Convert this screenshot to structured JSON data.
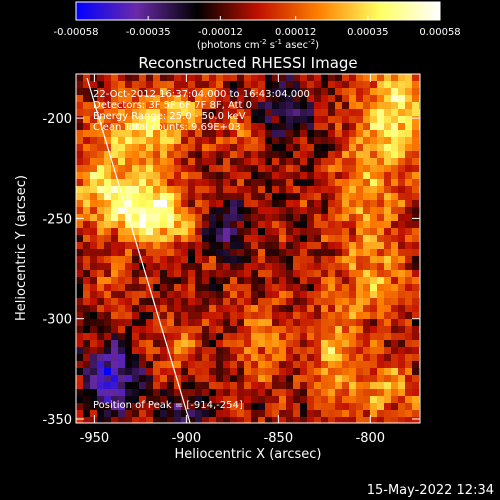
{
  "chart_data": {
    "type": "heatmap",
    "title": "Reconstructed RHESSI Image",
    "colorbar": {
      "ticks": [
        "-0.00058",
        "-0.00035",
        "-0.00012",
        "0.00012",
        "0.00035",
        "0.00058"
      ],
      "range": [
        -0.00058,
        0.00058
      ],
      "label_pre": "(photons cm",
      "label_exp1": "-2",
      "label_mid1": " s",
      "label_exp2": "-1",
      "label_mid2": " asec",
      "label_exp3": "-2",
      "label_post": ")",
      "colormap": [
        "#0000ff",
        "#6a2aa8",
        "#000000",
        "#c01000",
        "#ff8000",
        "#ffff60",
        "#ffffff"
      ]
    },
    "annotations": {
      "time": "22-Oct-2012 16:37:04.000 to 16:43:04.000",
      "detectors": "Detectors: 3F 5F 6F 7F 8F, Att 0",
      "energy": "Energy Range: 25.0 - 50.0 keV",
      "clean": "Clean     Total counts: 9.69E+03",
      "peak": "Position of Peak = [-914,-254]"
    },
    "x_axis": {
      "label": "Heliocentric X (arcsec)",
      "ticks": [
        -950,
        -900,
        -850,
        -800
      ],
      "tick_labels": [
        "-950",
        "-900",
        "-850",
        "-800"
      ],
      "range": [
        -960,
        -773
      ]
    },
    "y_axis": {
      "label": "Heliocentric Y (arcsec)",
      "ticks": [
        -350,
        -300,
        -250,
        -200
      ],
      "tick_labels": [
        "-350",
        "-300",
        "-250",
        "-200"
      ],
      "range": [
        -352,
        -178
      ]
    },
    "peak_position": [
      -914,
      -254
    ],
    "limb_line": [
      [
        -954,
        -180
      ],
      [
        -898,
        -352
      ]
    ],
    "grid": false,
    "features": [
      {
        "x": -918,
        "y": -250,
        "sx": 14,
        "sy": 10,
        "amp": 1.0
      },
      {
        "x": -940,
        "y": -236,
        "sx": 18,
        "sy": 12,
        "amp": 0.8
      },
      {
        "x": -925,
        "y": -205,
        "sx": 18,
        "sy": 12,
        "amp": 0.7
      },
      {
        "x": -903,
        "y": -195,
        "sx": 10,
        "sy": 8,
        "amp": 0.35
      },
      {
        "x": -940,
        "y": -285,
        "sx": 6,
        "sy": 10,
        "amp": 0.3
      },
      {
        "x": -905,
        "y": -315,
        "sx": 8,
        "sy": 8,
        "amp": 0.4
      },
      {
        "x": -860,
        "y": -310,
        "sx": 10,
        "sy": 14,
        "amp": 0.45
      },
      {
        "x": -820,
        "y": -320,
        "sx": 9,
        "sy": 22,
        "amp": 0.6
      },
      {
        "x": -800,
        "y": -240,
        "sx": 14,
        "sy": 30,
        "amp": 0.5
      },
      {
        "x": -785,
        "y": -195,
        "sx": 12,
        "sy": 16,
        "amp": 0.8
      },
      {
        "x": -795,
        "y": -285,
        "sx": 10,
        "sy": 12,
        "amp": 0.4
      },
      {
        "x": -870,
        "y": -210,
        "sx": 7,
        "sy": 7,
        "amp": 0.35
      },
      {
        "x": -790,
        "y": -335,
        "sx": 12,
        "sy": 10,
        "amp": 0.55
      },
      {
        "x": -880,
        "y": -255,
        "sx": 8,
        "sy": 8,
        "amp": -0.6
      },
      {
        "x": -940,
        "y": -330,
        "sx": 10,
        "sy": 12,
        "amp": -0.9
      },
      {
        "x": -900,
        "y": -345,
        "sx": 8,
        "sy": 6,
        "amp": -0.5
      },
      {
        "x": -845,
        "y": -195,
        "sx": 10,
        "sy": 14,
        "amp": -0.5
      }
    ]
  },
  "timestamp": "15-May-2022 12:34"
}
